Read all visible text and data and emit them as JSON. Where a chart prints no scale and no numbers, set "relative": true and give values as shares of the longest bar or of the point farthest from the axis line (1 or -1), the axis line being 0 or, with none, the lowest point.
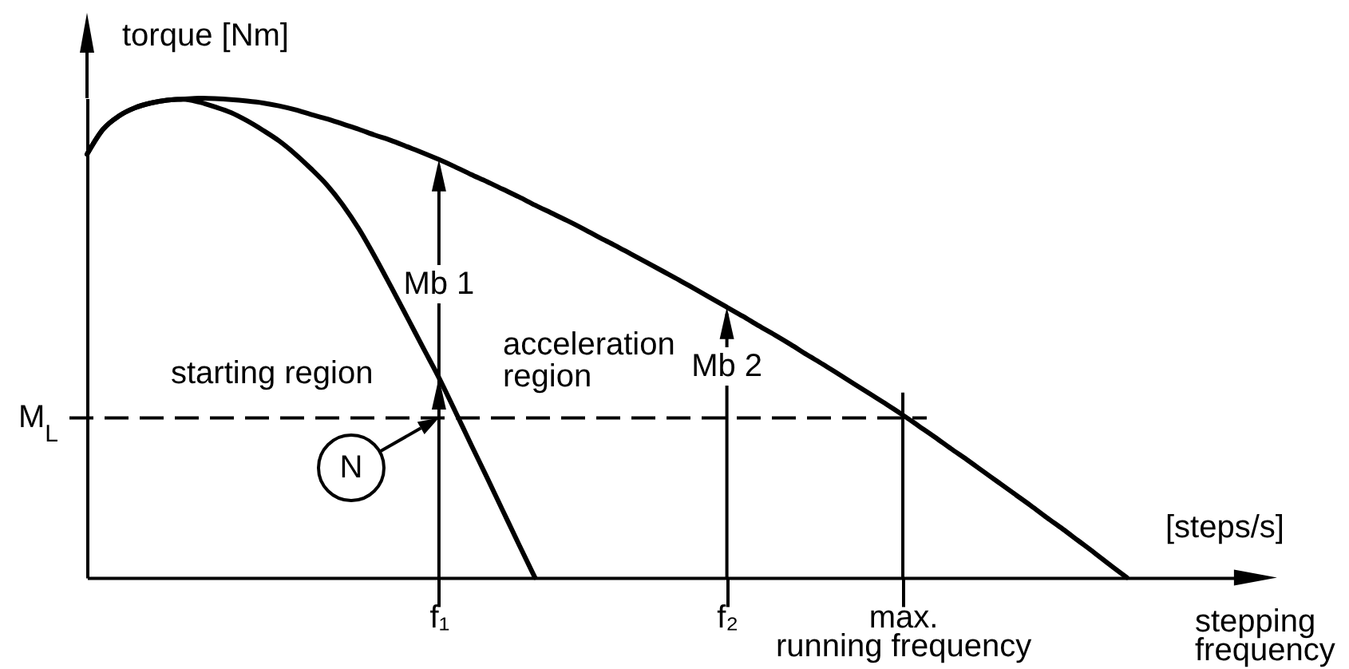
{
  "chart_data": {
    "type": "line",
    "relative": true,
    "grid": "x",
    "xlabel": "stepping frequency",
    "ylabel": "torque [Nm]",
    "categories": [
      null,
      null,
      null,
      null,
      null,
      null,
      null,
      null,
      null,
      null,
      null,
      null,
      null,
      null,
      null,
      null,
      null,
      null,
      null,
      null,
      null,
      null,
      "f₁",
      null,
      null,
      null,
      null,
      null,
      null,
      null,
      null,
      null,
      null,
      null,
      null,
      null,
      null,
      null,
      null,
      null,
      "f₂",
      null,
      null,
      null,
      null,
      null,
      null,
      null,
      null,
      null,
      null,
      "max. running frequency",
      null,
      null,
      null,
      null,
      null,
      null,
      null,
      null,
      null,
      null,
      null,
      null,
      null,
      null,
      null,
      null,
      null,
      null,
      null,
      null,
      null
    ],
    "series": [
      {
        "color": "#000000",
        "values": [
          0.883,
          0.935,
          0.963,
          0.98,
          0.99,
          0.996,
          0.998,
          1.0,
          0.999,
          0.997,
          0.994,
          0.99,
          0.984,
          0.976,
          0.966,
          0.957,
          0.946,
          0.935,
          0.923,
          0.912,
          0.899,
          0.886,
          0.872,
          0.857,
          0.841,
          0.826,
          0.81,
          0.794,
          0.777,
          0.761,
          0.745,
          0.728,
          0.71,
          0.693,
          0.675,
          0.657,
          0.639,
          0.621,
          0.602,
          0.583,
          0.564,
          0.545,
          0.525,
          0.506,
          0.486,
          0.465,
          0.445,
          0.424,
          0.403,
          0.382,
          0.361,
          0.339,
          0.316,
          0.293,
          0.269,
          0.246,
          0.222,
          0.198,
          0.174,
          0.15,
          0.125,
          0.101,
          0.076,
          0.051,
          0.025,
          0,
          null,
          null,
          null,
          null,
          null,
          null,
          null
        ]
      },
      {
        "color": "#000000",
        "values": [
          0.883,
          0.935,
          0.963,
          0.98,
          0.99,
          0.996,
          0.998,
          0.992,
          0.982,
          0.97,
          0.953,
          0.933,
          0.911,
          0.884,
          0.853,
          0.819,
          0.777,
          0.727,
          0.669,
          0.607,
          0.544,
          0.48,
          0.417,
          0.348,
          0.278,
          0.209,
          0.139,
          0.069,
          0,
          null,
          null,
          null,
          null,
          null,
          null,
          null,
          null,
          null,
          null,
          null,
          null,
          null,
          null,
          null,
          null,
          null,
          null,
          null,
          null,
          null,
          null,
          null,
          null,
          null,
          null,
          null,
          null,
          null,
          null,
          null,
          null,
          null,
          null,
          null,
          null,
          null,
          null,
          null,
          null,
          null,
          null,
          null,
          null
        ]
      }
    ],
    "ref_lines": [
      {
        "axis": "y",
        "value": 0.333,
        "label": "M$_{L}$",
        "line_style": "dashed"
      }
    ],
    "annotations": [
      "Mb 1",
      "Mb 2",
      "starting region",
      "acceleration region",
      "N",
      "[steps/s]"
    ]
  }
}
